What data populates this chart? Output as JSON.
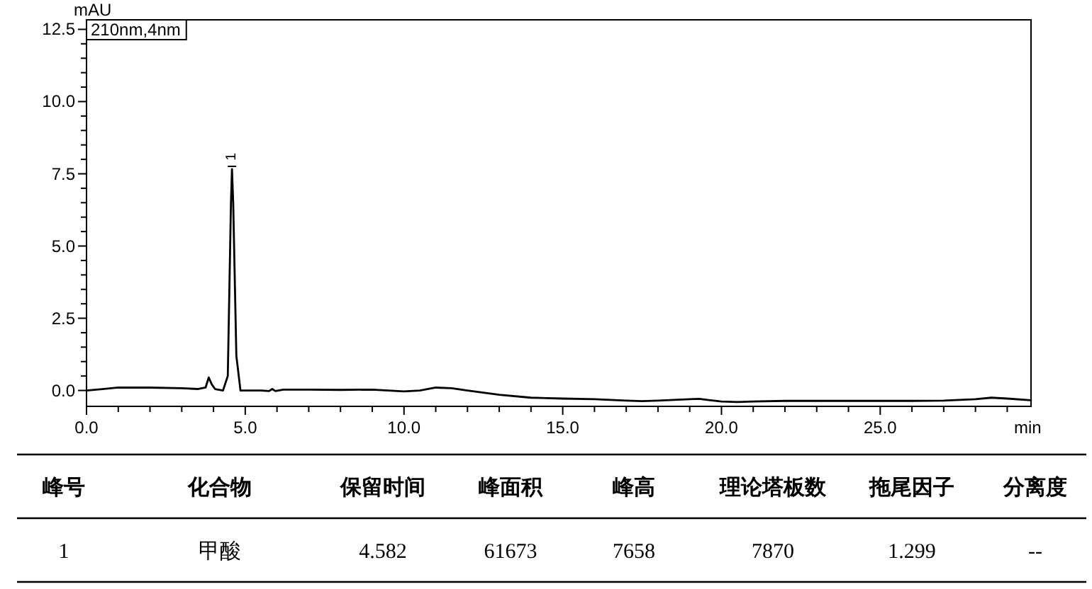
{
  "chart_data": {
    "type": "line",
    "xlabel": "min",
    "ylabel": "mAU",
    "x": [
      0,
      0.5,
      1,
      2,
      3,
      3.5,
      3.75,
      3.85,
      3.95,
      4.05,
      4.3,
      4.45,
      4.55,
      4.582,
      4.62,
      4.72,
      4.85,
      5.2,
      5.5,
      5.75,
      5.85,
      5.95,
      6.2,
      7,
      8,
      9,
      10,
      10.5,
      11,
      11.5,
      12,
      13,
      14,
      15,
      16,
      17,
      17.5,
      18,
      19,
      19.3,
      19.6,
      20,
      20.5,
      21,
      22,
      23,
      24,
      25,
      26,
      27,
      28,
      28.5,
      29,
      29.75
    ],
    "series": [
      {
        "color": "#000000",
        "values": [
          0,
          0.05,
          0.1,
          0.1,
          0.08,
          0.05,
          0.1,
          0.45,
          0.2,
          0.05,
          0,
          0.5,
          6.5,
          7.66,
          6.5,
          1.2,
          0,
          0,
          0,
          -0.02,
          0.05,
          -0.02,
          0.03,
          0.03,
          0.02,
          0.03,
          -0.03,
          0,
          0.1,
          0.08,
          0,
          -0.15,
          -0.25,
          -0.28,
          -0.3,
          -0.35,
          -0.37,
          -0.35,
          -0.3,
          -0.29,
          -0.33,
          -0.38,
          -0.4,
          -0.38,
          -0.36,
          -0.36,
          -0.36,
          -0.36,
          -0.36,
          -0.35,
          -0.3,
          -0.25,
          -0.28,
          -0.34
        ]
      }
    ],
    "xlim": [
      0,
      29.75
    ],
    "ylim": [
      -0.55,
      12.83
    ],
    "xticks": [
      {
        "value": 0,
        "label": "0.0"
      },
      {
        "value": 1,
        "label": null
      },
      {
        "value": 2,
        "label": null
      },
      {
        "value": 3,
        "label": null
      },
      {
        "value": 4,
        "label": null
      },
      {
        "value": 5,
        "label": "5.0"
      },
      {
        "value": 6,
        "label": null
      },
      {
        "value": 7,
        "label": null
      },
      {
        "value": 8,
        "label": null
      },
      {
        "value": 9,
        "label": null
      },
      {
        "value": 10,
        "label": "10.0"
      },
      {
        "value": 11,
        "label": null
      },
      {
        "value": 12,
        "label": null
      },
      {
        "value": 13,
        "label": null
      },
      {
        "value": 14,
        "label": null
      },
      {
        "value": 15,
        "label": "15.0"
      },
      {
        "value": 16,
        "label": null
      },
      {
        "value": 17,
        "label": null
      },
      {
        "value": 18,
        "label": null
      },
      {
        "value": 19,
        "label": null
      },
      {
        "value": 20,
        "label": "20.0"
      },
      {
        "value": 21,
        "label": null
      },
      {
        "value": 22,
        "label": null
      },
      {
        "value": 23,
        "label": null
      },
      {
        "value": 24,
        "label": null
      },
      {
        "value": 25,
        "label": "25.0"
      },
      {
        "value": 26,
        "label": null
      },
      {
        "value": 27,
        "label": null
      },
      {
        "value": 28,
        "label": null
      },
      {
        "value": 29,
        "label": null
      }
    ],
    "yticks": [
      {
        "value": 0,
        "label": "0.0"
      },
      {
        "value": 0.5,
        "label": null
      },
      {
        "value": 1,
        "label": null
      },
      {
        "value": 1.5,
        "label": null
      },
      {
        "value": 2,
        "label": null
      },
      {
        "value": 2.5,
        "label": "2.5"
      },
      {
        "value": 3,
        "label": null
      },
      {
        "value": 3.5,
        "label": null
      },
      {
        "value": 4,
        "label": null
      },
      {
        "value": 4.5,
        "label": null
      },
      {
        "value": 5,
        "label": "5.0"
      },
      {
        "value": 5.5,
        "label": null
      },
      {
        "value": 6,
        "label": null
      },
      {
        "value": 6.5,
        "label": null
      },
      {
        "value": 7,
        "label": null
      },
      {
        "value": 7.5,
        "label": "7.5"
      },
      {
        "value": 8,
        "label": null
      },
      {
        "value": 8.5,
        "label": null
      },
      {
        "value": 9,
        "label": null
      },
      {
        "value": 9.5,
        "label": null
      },
      {
        "value": 10,
        "label": "10.0"
      },
      {
        "value": 10.5,
        "label": null
      },
      {
        "value": 11,
        "label": null
      },
      {
        "value": 11.5,
        "label": null
      },
      {
        "value": 12,
        "label": null
      },
      {
        "value": 12.5,
        "label": "12.5"
      }
    ],
    "grid": false,
    "marker": "none",
    "line_style": "solid",
    "annotations": [
      "210nm,4nm",
      {
        "text": "1",
        "x": 4.582,
        "y": 7.66
      },
      "峰号",
      "化合物",
      "保留时间",
      "峰面积",
      "峰高",
      "理论塔板数",
      "拖尾因子",
      "分离度",
      "1",
      "甲酸",
      "4.582",
      "61673",
      "7658",
      "7870",
      "1.299",
      "--"
    ]
  }
}
